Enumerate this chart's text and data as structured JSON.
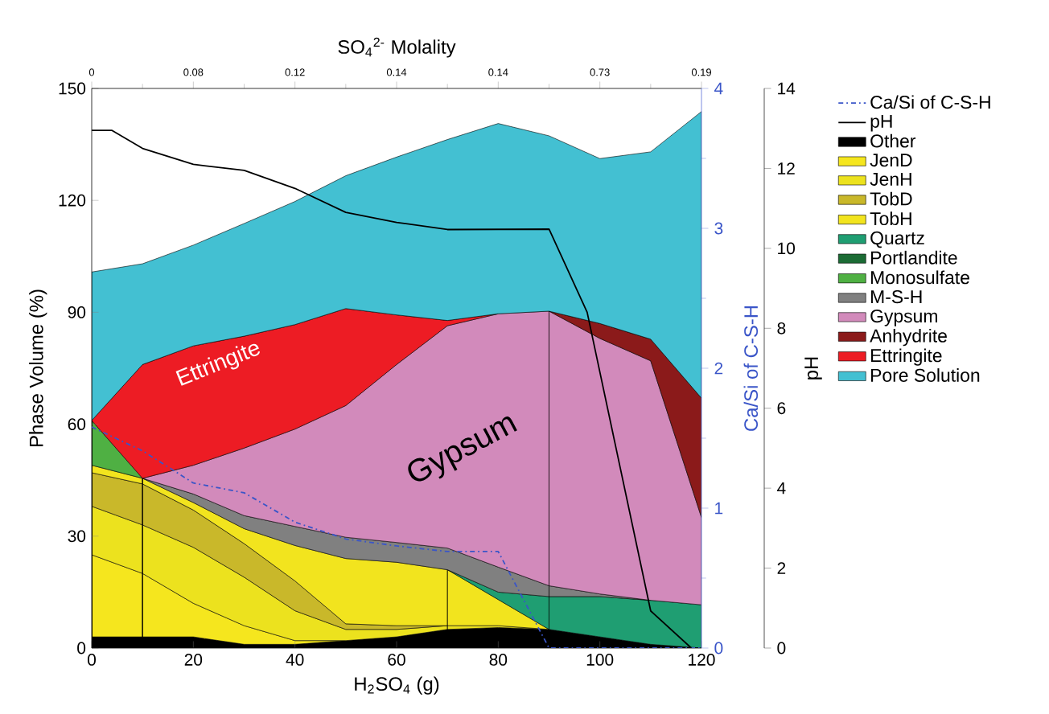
{
  "chart_data": {
    "type": "area",
    "stacked": true,
    "legend": "right",
    "xlabel": "H$_{2}$SO$_{4}$ (g)",
    "ylabel": "Phase Volume (%)",
    "y2label": "Ca/Si of C-S-H",
    "y3label": "pH",
    "x2label": "SO$_{4}$$^{2-}$ Molality",
    "x": [
      0,
      10,
      20,
      30,
      40,
      50,
      60,
      70,
      80,
      90,
      100,
      110,
      120
    ],
    "xlim": [
      0,
      120
    ],
    "xticks": [
      0,
      20,
      40,
      60,
      80,
      100,
      120
    ],
    "ylim": [
      0,
      150
    ],
    "yticks": [
      0,
      30,
      60,
      90,
      120,
      150
    ],
    "y2lim": [
      0,
      4
    ],
    "y2ticks": [
      0,
      {
        "value": 0.5,
        "label": null
      },
      1,
      {
        "value": 1.5,
        "label": null
      },
      2,
      {
        "value": 2.5,
        "label": null
      },
      3,
      {
        "value": 3.5,
        "label": null
      },
      4
    ],
    "y3lim": [
      0,
      14
    ],
    "y3ticks": [
      0,
      2,
      4,
      6,
      8,
      10,
      12,
      14
    ],
    "annotations": [
      "Ettringite",
      "Gypsum",
      "0",
      "0.08",
      "0.12",
      "0.14",
      "0.14",
      "0.73",
      "0.19"
    ],
    "series": [
      {
        "name": "Ca/Si of C-S-H",
        "type": "line",
        "axis": "y2",
        "line_style": "dashed",
        "color": "#3a55c8",
        "x": [
          0,
          10,
          20,
          30,
          40,
          50,
          60,
          70,
          80,
          90,
          100,
          110,
          120
        ],
        "values": [
          1.58,
          1.41,
          1.18,
          1.11,
          0.9,
          0.78,
          0.73,
          0.69,
          0.69,
          0,
          0,
          0,
          0
        ]
      },
      {
        "name": "pH",
        "type": "line",
        "axis": "y3",
        "line_style": "solid",
        "color": "#000000",
        "x": [
          0,
          4,
          10,
          20,
          30,
          40,
          50,
          60,
          70,
          90,
          97.5,
          110,
          118
        ],
        "values": [
          12.95,
          12.95,
          12.5,
          12.1,
          11.95,
          11.5,
          10.9,
          10.65,
          10.47,
          10.48,
          8.4,
          0.93,
          0
        ]
      },
      {
        "name": "Other",
        "color": "#000000",
        "values": [
          3,
          3,
          3,
          1,
          1,
          2,
          3,
          5,
          5.5,
          5,
          3,
          1,
          0
        ]
      },
      {
        "name": "JenD",
        "color": "#f5e61e",
        "values": [
          22,
          17,
          9,
          5,
          1,
          0,
          null,
          null,
          null,
          null,
          null,
          null,
          null
        ]
      },
      {
        "name": "JenH",
        "color": "#ece21e",
        "values": [
          13,
          13,
          15,
          13,
          8,
          3,
          2,
          1,
          0.5,
          0,
          null,
          null,
          null
        ]
      },
      {
        "name": "TobD",
        "color": "#c9b82a",
        "values": [
          9,
          11,
          10,
          9,
          8,
          1.5,
          1,
          0,
          null,
          null,
          null,
          null,
          null
        ]
      },
      {
        "name": "TobH",
        "color": "#f2e41e",
        "values": [
          2,
          1.5,
          2,
          4,
          9.5,
          17.5,
          17,
          15,
          7,
          0,
          null,
          null,
          null
        ]
      },
      {
        "name": "Quartz",
        "color": "#1f9e72",
        "values": [
          null,
          null,
          null,
          null,
          null,
          null,
          null,
          0,
          2,
          8.8,
          10.8,
          11.8,
          11.6
        ]
      },
      {
        "name": "Portlandite",
        "color": "#1b6b34",
        "values": [
          null,
          null,
          null,
          null,
          null,
          null,
          null,
          null,
          null,
          null,
          null,
          null,
          null
        ]
      },
      {
        "name": "Monosulfate",
        "color": "#4fb043",
        "values": [
          12,
          0,
          null,
          null,
          null,
          null,
          null,
          null,
          null,
          null,
          null,
          null,
          null
        ]
      },
      {
        "name": "M-S-H",
        "color": "#808080",
        "values": [
          null,
          0,
          2.3,
          3.5,
          5.1,
          5.7,
          5.3,
          5.8,
          6.7,
          2.9,
          0.7,
          0,
          null
        ]
      },
      {
        "name": "Gypsum",
        "color": "#d28abb",
        "values": [
          null,
          0,
          7.7,
          18.1,
          26.1,
          35.3,
          47.7,
          59.6,
          67.9,
          73.6,
          68.5,
          64.2,
          23.4
        ]
      },
      {
        "name": "Anhydrite",
        "color": "#8b1a1a",
        "values": [
          null,
          null,
          null,
          null,
          null,
          null,
          null,
          null,
          null,
          0,
          4,
          5.8,
          32
        ]
      },
      {
        "name": "Ettringite",
        "color": "#ed1c24",
        "values": [
          0,
          30.5,
          32,
          30,
          28,
          26,
          13.3,
          1.4,
          0,
          null,
          null,
          null,
          null
        ]
      },
      {
        "name": "Pore Solution",
        "color": "#43c0d2",
        "values": [
          39.8,
          27,
          27,
          30.2,
          33,
          35.6,
          42.3,
          48.5,
          51,
          47,
          44.2,
          50.2,
          76.8
        ]
      }
    ]
  }
}
